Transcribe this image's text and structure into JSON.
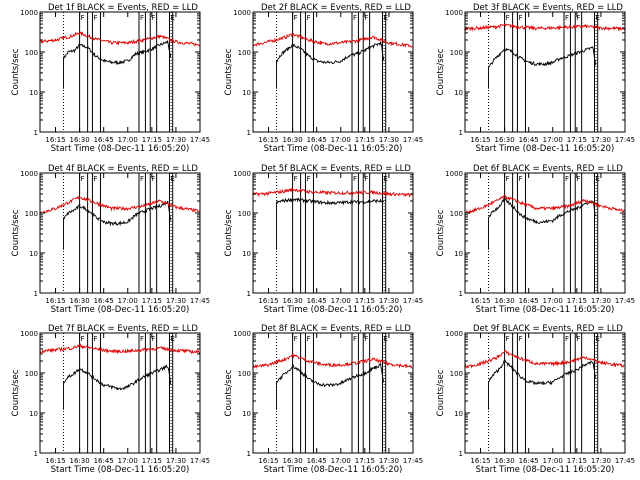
{
  "chart_data": {
    "type": "line",
    "x_start": "16:05:20",
    "x_end": "17:45",
    "x_ticks": [
      "16:15",
      "16:30",
      "16:45",
      "17:00",
      "17:15",
      "17:30",
      "17:45"
    ],
    "y_ticks": [
      "1",
      "10",
      "100",
      "1000"
    ],
    "ylim": [
      1,
      1000
    ],
    "y_scale": "log",
    "xlabel": "Start Time (08-Dec-11 16:05:20)",
    "ylabel": "Counts/sec",
    "colors": {
      "events": "#000000",
      "lld": "#e00000"
    },
    "dotted_markers": [
      "16:20",
      "17:27"
    ],
    "flags": [
      {
        "start": "16:30",
        "end": "16:35",
        "label": "F"
      },
      {
        "start": "16:38",
        "end": "16:43",
        "label": "F"
      },
      {
        "start": "17:07",
        "end": "17:11",
        "label": "F"
      },
      {
        "start": "17:14",
        "end": "17:18",
        "label": "F"
      },
      {
        "start": "17:26",
        "end": "17:28",
        "label": "E"
      }
    ],
    "panels": [
      {
        "title": "Det 1f BLACK = Events, RED = LLD",
        "series": [
          {
            "name": "Events",
            "x": [
              "16:20",
              "16:23",
              "16:27",
              "16:30",
              "16:35",
              "16:40",
              "16:45",
              "16:50",
              "16:55",
              "17:00",
              "17:05",
              "17:10",
              "17:15",
              "17:20",
              "17:25",
              "17:27"
            ],
            "y": [
              70,
              100,
              110,
              150,
              130,
              80,
              60,
              55,
              55,
              60,
              90,
              100,
              120,
              150,
              180,
              60
            ]
          },
          {
            "name": "LLD",
            "x": [
              "16:05",
              "16:15",
              "16:25",
              "16:30",
              "16:40",
              "16:50",
              "17:00",
              "17:10",
              "17:20",
              "17:30",
              "17:45"
            ],
            "y": [
              180,
              200,
              250,
              300,
              210,
              170,
              170,
              200,
              250,
              180,
              150
            ]
          }
        ]
      },
      {
        "title": "Det 2f BLACK = Events, RED = LLD",
        "series": [
          {
            "name": "Events",
            "x": [
              "16:20",
              "16:23",
              "16:27",
              "16:30",
              "16:35",
              "16:40",
              "16:45",
              "16:50",
              "16:55",
              "17:00",
              "17:05",
              "17:10",
              "17:15",
              "17:20",
              "17:25",
              "17:27"
            ],
            "y": [
              60,
              90,
              120,
              150,
              120,
              80,
              60,
              55,
              55,
              60,
              80,
              90,
              110,
              140,
              170,
              50
            ]
          },
          {
            "name": "LLD",
            "x": [
              "16:05",
              "16:15",
              "16:25",
              "16:30",
              "16:40",
              "16:50",
              "17:00",
              "17:10",
              "17:20",
              "17:30",
              "17:45"
            ],
            "y": [
              150,
              180,
              230,
              280,
              200,
              160,
              170,
              190,
              240,
              170,
              140
            ]
          }
        ]
      },
      {
        "title": "Det 3f BLACK = Events, RED = LLD",
        "series": [
          {
            "name": "Events",
            "x": [
              "16:20",
              "16:23",
              "16:27",
              "16:30",
              "16:35",
              "16:40",
              "16:45",
              "16:50",
              "16:55",
              "17:00",
              "17:05",
              "17:10",
              "17:15",
              "17:20",
              "17:25",
              "17:27"
            ],
            "y": [
              40,
              60,
              90,
              120,
              100,
              70,
              55,
              50,
              50,
              55,
              70,
              80,
              95,
              110,
              130,
              40
            ]
          },
          {
            "name": "LLD",
            "x": [
              "16:05",
              "16:15",
              "16:25",
              "16:30",
              "16:40",
              "16:50",
              "17:00",
              "17:10",
              "17:20",
              "17:30",
              "17:45"
            ],
            "y": [
              380,
              400,
              430,
              470,
              420,
              390,
              400,
              420,
              440,
              400,
              380
            ]
          }
        ]
      },
      {
        "title": "Det 4f BLACK = Events, RED = LLD",
        "series": [
          {
            "name": "Events",
            "x": [
              "16:20",
              "16:23",
              "16:27",
              "16:30",
              "16:35",
              "16:40",
              "16:45",
              "16:50",
              "16:55",
              "17:00",
              "17:05",
              "17:10",
              "17:15",
              "17:20",
              "17:25",
              "17:27"
            ],
            "y": [
              70,
              100,
              120,
              150,
              120,
              80,
              60,
              55,
              55,
              60,
              90,
              110,
              130,
              150,
              190,
              60
            ]
          },
          {
            "name": "LLD",
            "x": [
              "16:05",
              "16:15",
              "16:25",
              "16:30",
              "16:40",
              "16:50",
              "17:00",
              "17:10",
              "17:20",
              "17:30",
              "17:45"
            ],
            "y": [
              100,
              130,
              200,
              250,
              180,
              130,
              130,
              150,
              200,
              140,
              110
            ]
          }
        ]
      },
      {
        "title": "Det 5f BLACK = Events, RED = LLD",
        "series": [
          {
            "name": "Events",
            "x": [
              "16:20",
              "16:23",
              "16:27",
              "16:30",
              "16:35",
              "16:40",
              "16:45",
              "16:50",
              "16:55",
              "17:00",
              "17:05",
              "17:10",
              "17:15",
              "17:20",
              "17:25",
              "17:27"
            ],
            "y": [
              180,
              200,
              210,
              220,
              210,
              200,
              190,
              180,
              180,
              180,
              190,
              190,
              190,
              200,
              200,
              180
            ]
          },
          {
            "name": "LLD",
            "x": [
              "16:05",
              "16:15",
              "16:25",
              "16:30",
              "16:40",
              "16:50",
              "17:00",
              "17:10",
              "17:20",
              "17:30",
              "17:45"
            ],
            "y": [
              290,
              310,
              350,
              390,
              340,
              320,
              320,
              320,
              330,
              300,
              280
            ]
          }
        ]
      },
      {
        "title": "Det 6f BLACK = Events, RED = LLD",
        "series": [
          {
            "name": "Events",
            "x": [
              "16:20",
              "16:23",
              "16:27",
              "16:30",
              "16:35",
              "16:40",
              "16:45",
              "16:50",
              "16:55",
              "17:00",
              "17:05",
              "17:10",
              "17:15",
              "17:20",
              "17:25",
              "17:27"
            ],
            "y": [
              80,
              110,
              150,
              220,
              150,
              90,
              70,
              60,
              60,
              65,
              90,
              110,
              130,
              170,
              200,
              70
            ]
          },
          {
            "name": "LLD",
            "x": [
              "16:05",
              "16:15",
              "16:25",
              "16:30",
              "16:40",
              "16:50",
              "17:00",
              "17:10",
              "17:20",
              "17:30",
              "17:45"
            ],
            "y": [
              100,
              130,
              200,
              260,
              180,
              130,
              130,
              150,
              210,
              150,
              110
            ]
          }
        ]
      },
      {
        "title": "Det 7f BLACK = Events, RED = LLD",
        "series": [
          {
            "name": "Events",
            "x": [
              "16:20",
              "16:23",
              "16:27",
              "16:30",
              "16:35",
              "16:40",
              "16:45",
              "16:50",
              "16:55",
              "17:00",
              "17:05",
              "17:10",
              "17:15",
              "17:20",
              "17:25",
              "17:27"
            ],
            "y": [
              60,
              80,
              100,
              130,
              100,
              70,
              50,
              45,
              40,
              45,
              60,
              80,
              100,
              120,
              150,
              50
            ]
          },
          {
            "name": "LLD",
            "x": [
              "16:05",
              "16:15",
              "16:25",
              "16:30",
              "16:40",
              "16:50",
              "17:00",
              "17:10",
              "17:20",
              "17:30",
              "17:45"
            ],
            "y": [
              350,
              380,
              420,
              480,
              400,
              350,
              350,
              380,
              420,
              370,
              330
            ]
          }
        ]
      },
      {
        "title": "Det 8f BLACK = Events, RED = LLD",
        "series": [
          {
            "name": "Events",
            "x": [
              "16:20",
              "16:23",
              "16:27",
              "16:30",
              "16:35",
              "16:40",
              "16:45",
              "16:50",
              "16:55",
              "17:00",
              "17:05",
              "17:10",
              "17:15",
              "17:20",
              "17:25",
              "17:27"
            ],
            "y": [
              60,
              80,
              110,
              150,
              110,
              70,
              55,
              50,
              50,
              55,
              70,
              85,
              100,
              130,
              160,
              50
            ]
          },
          {
            "name": "LLD",
            "x": [
              "16:05",
              "16:15",
              "16:25",
              "16:30",
              "16:40",
              "16:50",
              "17:00",
              "17:10",
              "17:20",
              "17:30",
              "17:45"
            ],
            "y": [
              140,
              160,
              220,
              280,
              200,
              160,
              160,
              180,
              220,
              170,
              140
            ]
          }
        ]
      },
      {
        "title": "Det 9f BLACK = Events, RED = LLD",
        "series": [
          {
            "name": "Events",
            "x": [
              "16:20",
              "16:23",
              "16:27",
              "16:30",
              "16:35",
              "16:40",
              "16:45",
              "16:50",
              "16:55",
              "17:00",
              "17:05",
              "17:10",
              "17:15",
              "17:20",
              "17:25",
              "17:27"
            ],
            "y": [
              60,
              90,
              130,
              200,
              130,
              80,
              60,
              55,
              55,
              60,
              80,
              100,
              120,
              160,
              190,
              60
            ]
          },
          {
            "name": "LLD",
            "x": [
              "16:05",
              "16:15",
              "16:25",
              "16:30",
              "16:40",
              "16:50",
              "17:00",
              "17:10",
              "17:20",
              "17:30",
              "17:45"
            ],
            "y": [
              140,
              170,
              240,
              340,
              230,
              170,
              170,
              190,
              250,
              180,
              150
            ]
          }
        ]
      }
    ]
  }
}
